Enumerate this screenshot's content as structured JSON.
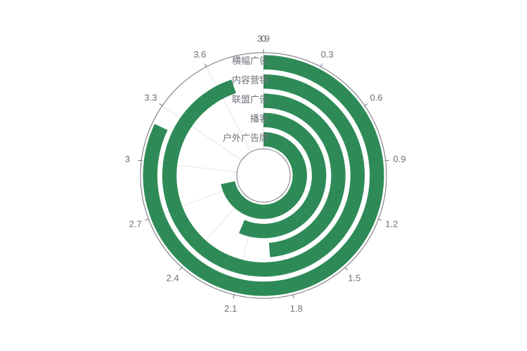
{
  "chart_data": {
    "type": "polar-radial-bar",
    "angle_axis": {
      "min": 0,
      "max": 3.9,
      "ticks": [
        "0",
        "0.3",
        "0.6",
        "0.9",
        "1.2",
        "1.5",
        "1.8",
        "2.1",
        "2.4",
        "2.7",
        "3",
        "3.3",
        "3.6",
        "3.9"
      ]
    },
    "categories": [
      "户外广告牌",
      "播客",
      "联盟广告",
      "内容营销",
      "横幅广告"
    ],
    "values": [
      2.8,
      2.2,
      1.9,
      3.7,
      3.2
    ],
    "bar_color": "#2e8b57",
    "grid": true
  }
}
